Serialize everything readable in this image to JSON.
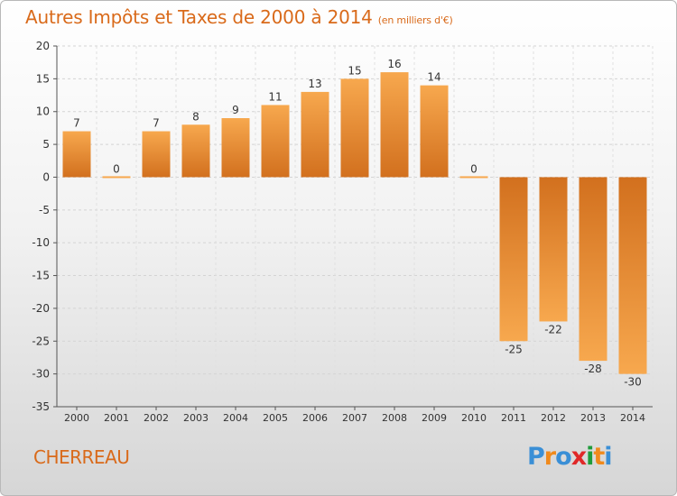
{
  "title": "Autres Impôts et Taxes de 2000 à 2014",
  "unit": "(en milliers d'€)",
  "commune": "CHERREAU",
  "logo": {
    "text": "Proxiti",
    "letters": [
      "P",
      "r",
      "o",
      "x",
      "i",
      "t",
      "i"
    ],
    "colors": [
      "#3a8fd6",
      "#f08a1c",
      "#3a8fd6",
      "#e02828",
      "#1f9c3a",
      "#f08a1c",
      "#3a8fd6"
    ]
  },
  "chart_data": {
    "type": "bar",
    "categories": [
      "2000",
      "2001",
      "2002",
      "2003",
      "2004",
      "2005",
      "2006",
      "2007",
      "2008",
      "2009",
      "2010",
      "2011",
      "2012",
      "2013",
      "2014"
    ],
    "values": [
      7,
      0,
      7,
      8,
      9,
      11,
      13,
      15,
      16,
      14,
      0,
      -25,
      -22,
      -28,
      -30
    ],
    "ylim": [
      -35,
      20
    ],
    "yticks": [
      20,
      15,
      10,
      5,
      0,
      -5,
      -10,
      -15,
      -20,
      -25,
      -30,
      -35
    ],
    "grid": true,
    "bar_color_light": "#f7a84e",
    "bar_color_dark": "#d2701e"
  }
}
